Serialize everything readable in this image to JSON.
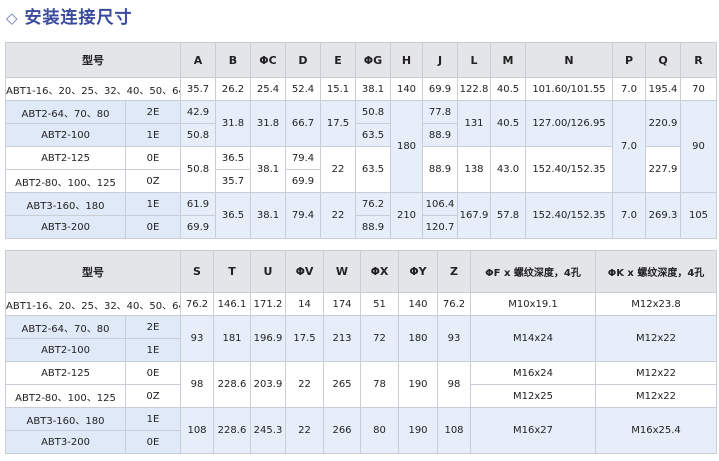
{
  "title": {
    "icon": "diamond-outline-icon",
    "text": "安装连接尺寸"
  },
  "colors": {
    "title": "#3a4a9c",
    "header_bg": "#e4e5e8",
    "band_bg": "#e6eef9",
    "border": "#c9ced6"
  },
  "table1": {
    "headers": [
      "型号",
      "A",
      "B",
      "ΦC",
      "D",
      "E",
      "ΦG",
      "H",
      "J",
      "L",
      "M",
      "N",
      "P",
      "Q",
      "R"
    ],
    "rows": [
      {
        "band": "white",
        "cells": [
          {
            "v": "ABT1-16、20、25、32、40、50、64",
            "cs": 2,
            "m": 1
          },
          {
            "v": "35.7"
          },
          {
            "v": "26.2"
          },
          {
            "v": "25.4"
          },
          {
            "v": "52.4"
          },
          {
            "v": "15.1"
          },
          {
            "v": "38.1"
          },
          {
            "v": "140"
          },
          {
            "v": "69.9"
          },
          {
            "v": "122.8"
          },
          {
            "v": "40.5"
          },
          {
            "v": "101.60/101.55"
          },
          {
            "v": "7.0"
          },
          {
            "v": "195.4"
          },
          {
            "v": "70"
          }
        ]
      },
      {
        "band": "blue",
        "cells": [
          {
            "v": "ABT2-64、70、80",
            "m": 1
          },
          {
            "v": "2E",
            "m": 1
          },
          {
            "v": "42.9"
          },
          {
            "v": "31.8",
            "rs": 2
          },
          {
            "v": "31.8",
            "rs": 2
          },
          {
            "v": "66.7",
            "rs": 2
          },
          {
            "v": "17.5",
            "rs": 2
          },
          {
            "v": "50.8"
          },
          {
            "v": "180",
            "rs": 4
          },
          {
            "v": "77.8"
          },
          {
            "v": "131",
            "rs": 2
          },
          {
            "v": "40.5",
            "rs": 2
          },
          {
            "v": "127.00/126.95",
            "rs": 2
          },
          {
            "v": "7.0",
            "rs": 4
          },
          {
            "v": "220.9",
            "rs": 2
          },
          {
            "v": "90",
            "rs": 4
          }
        ]
      },
      {
        "band": "blue",
        "cells": [
          {
            "v": "ABT2-100",
            "m": 1
          },
          {
            "v": "1E",
            "m": 1
          },
          {
            "v": "50.8"
          },
          {
            "v": "63.5"
          },
          {
            "v": "88.9"
          }
        ]
      },
      {
        "band": "white",
        "cells": [
          {
            "v": "ABT2-125",
            "m": 1
          },
          {
            "v": "0E",
            "m": 1
          },
          {
            "v": "50.8",
            "rs": 2
          },
          {
            "v": "36.5"
          },
          {
            "v": "38.1",
            "rs": 2
          },
          {
            "v": "79.4"
          },
          {
            "v": "22",
            "rs": 2
          },
          {
            "v": "63.5",
            "rs": 2
          },
          {
            "v": "88.9",
            "rs": 2
          },
          {
            "v": "138",
            "rs": 2
          },
          {
            "v": "43.0",
            "rs": 2
          },
          {
            "v": "152.40/152.35",
            "rs": 2
          },
          {
            "v": "227.9",
            "rs": 2
          }
        ]
      },
      {
        "band": "white",
        "cells": [
          {
            "v": "ABT2-80、100、125",
            "m": 1
          },
          {
            "v": "0Z",
            "m": 1
          },
          {
            "v": "35.7"
          },
          {
            "v": "69.9"
          }
        ]
      },
      {
        "band": "blue",
        "cells": [
          {
            "v": "ABT3-160、180",
            "m": 1
          },
          {
            "v": "1E",
            "m": 1
          },
          {
            "v": "61.9"
          },
          {
            "v": "36.5",
            "rs": 2
          },
          {
            "v": "38.1",
            "rs": 2
          },
          {
            "v": "79.4",
            "rs": 2
          },
          {
            "v": "22",
            "rs": 2
          },
          {
            "v": "76.2"
          },
          {
            "v": "210",
            "rs": 2
          },
          {
            "v": "106.4"
          },
          {
            "v": "167.9",
            "rs": 2
          },
          {
            "v": "57.8",
            "rs": 2
          },
          {
            "v": "152.40/152.35",
            "rs": 2
          },
          {
            "v": "7.0",
            "rs": 2
          },
          {
            "v": "269.3",
            "rs": 2
          },
          {
            "v": "105",
            "rs": 2
          }
        ]
      },
      {
        "band": "blue",
        "cells": [
          {
            "v": "ABT3-200",
            "m": 1
          },
          {
            "v": "0E",
            "m": 1
          },
          {
            "v": "69.9"
          },
          {
            "v": "88.9"
          },
          {
            "v": "120.7"
          }
        ]
      }
    ]
  },
  "table2": {
    "headers": [
      "型号",
      "S",
      "T",
      "U",
      "ΦV",
      "W",
      "ΦX",
      "ΦY",
      "Z",
      "ΦF x 螺纹深度，4孔",
      "ΦK x 螺纹深度，4孔"
    ],
    "rows": [
      {
        "band": "white",
        "cells": [
          {
            "v": "ABT1-16、20、25、32、40、50、64",
            "cs": 2,
            "m": 1
          },
          {
            "v": "76.2"
          },
          {
            "v": "146.1"
          },
          {
            "v": "171.2"
          },
          {
            "v": "14"
          },
          {
            "v": "174"
          },
          {
            "v": "51"
          },
          {
            "v": "140"
          },
          {
            "v": "76.2"
          },
          {
            "v": "M10x19.1"
          },
          {
            "v": "M12x23.8"
          }
        ]
      },
      {
        "band": "blue",
        "cells": [
          {
            "v": "ABT2-64、70、80",
            "m": 1
          },
          {
            "v": "2E",
            "m": 1
          },
          {
            "v": "93",
            "rs": 2
          },
          {
            "v": "181",
            "rs": 2
          },
          {
            "v": "196.9",
            "rs": 2
          },
          {
            "v": "17.5",
            "rs": 2
          },
          {
            "v": "213",
            "rs": 2
          },
          {
            "v": "72",
            "rs": 2
          },
          {
            "v": "180",
            "rs": 2
          },
          {
            "v": "93",
            "rs": 2
          },
          {
            "v": "M14x24",
            "rs": 2
          },
          {
            "v": "M12x22",
            "rs": 2
          }
        ]
      },
      {
        "band": "blue",
        "cells": [
          {
            "v": "ABT2-100",
            "m": 1
          },
          {
            "v": "1E",
            "m": 1
          }
        ]
      },
      {
        "band": "white",
        "cells": [
          {
            "v": "ABT2-125",
            "m": 1
          },
          {
            "v": "0E",
            "m": 1
          },
          {
            "v": "98",
            "rs": 2
          },
          {
            "v": "228.6",
            "rs": 2
          },
          {
            "v": "203.9",
            "rs": 2
          },
          {
            "v": "22",
            "rs": 2
          },
          {
            "v": "265",
            "rs": 2
          },
          {
            "v": "78",
            "rs": 2
          },
          {
            "v": "190",
            "rs": 2
          },
          {
            "v": "98",
            "rs": 2
          },
          {
            "v": "M16x24"
          },
          {
            "v": "M12x22"
          }
        ]
      },
      {
        "band": "white",
        "cells": [
          {
            "v": "ABT2-80、100、125",
            "m": 1
          },
          {
            "v": "0Z",
            "m": 1
          },
          {
            "v": "M12x25"
          },
          {
            "v": "M12x22"
          }
        ]
      },
      {
        "band": "blue",
        "cells": [
          {
            "v": "ABT3-160、180",
            "m": 1
          },
          {
            "v": "1E",
            "m": 1
          },
          {
            "v": "108",
            "rs": 2
          },
          {
            "v": "228.6",
            "rs": 2
          },
          {
            "v": "245.3",
            "rs": 2
          },
          {
            "v": "22",
            "rs": 2
          },
          {
            "v": "266",
            "rs": 2
          },
          {
            "v": "80",
            "rs": 2
          },
          {
            "v": "190",
            "rs": 2
          },
          {
            "v": "108",
            "rs": 2
          },
          {
            "v": "M16x27",
            "rs": 2
          },
          {
            "v": "M16x25.4",
            "rs": 2
          }
        ]
      },
      {
        "band": "blue",
        "cells": [
          {
            "v": "ABT3-200",
            "m": 1
          },
          {
            "v": "0E",
            "m": 1
          }
        ]
      }
    ]
  }
}
